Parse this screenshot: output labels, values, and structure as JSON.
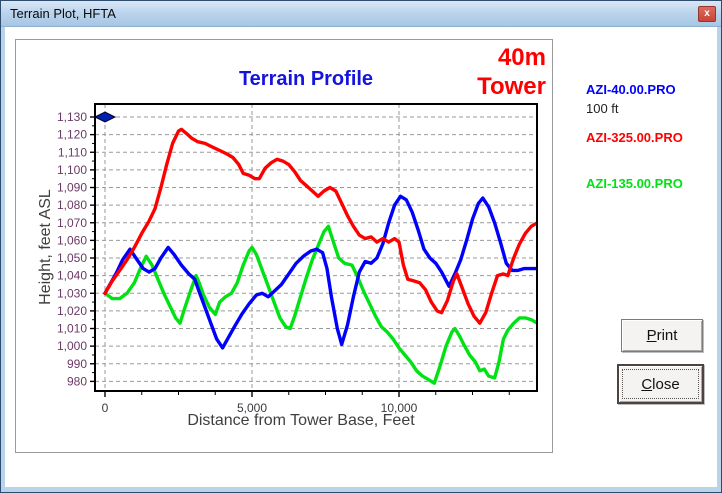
{
  "window": {
    "title": "Terrain Plot, HFTA",
    "close_glyph": "x"
  },
  "chart": {
    "title": "Terrain Profile",
    "annotation_line1": "40m",
    "annotation_line2": "Tower",
    "y_axis_label": "Height, feet ASL",
    "x_axis_label": "Distance from Tower Base, Feet"
  },
  "legend": {
    "series1_label": "AZI-40.00.PRO",
    "tower_height": "100 ft",
    "series2_label": "AZI-325.00.PRO",
    "series3_label": "AZI-135.00.PRO"
  },
  "buttons": {
    "print": "Print",
    "close": "Close"
  },
  "colors": {
    "chart_title": "#1414dd",
    "annotation": "#ff0000",
    "y_tick_labels": "#6a3a66",
    "x_tick_labels": "#3a3a40",
    "axis_labels": "#3f3f3f",
    "gridlines": "#9a9a9a",
    "frame": "#000000",
    "titlebar_close": "#c94437"
  },
  "chart_data": {
    "type": "line",
    "title": "Terrain Profile",
    "xlabel": "Distance from Tower Base, Feet",
    "ylabel": "Height, feet ASL",
    "ylim": [
      980,
      1130
    ],
    "ytick_step": 10,
    "xlim": [
      0,
      14700
    ],
    "xticks": [
      0,
      5000,
      10000
    ],
    "x_minor_step": 1250,
    "grid": "dashed",
    "legend_position": "right",
    "marker": {
      "name": "tower-top-marker",
      "x": 0,
      "y": 1130,
      "color": "#0020b0"
    },
    "series": [
      {
        "name": "AZI-40.00.PRO",
        "color": "#0000ff",
        "points": [
          [
            0,
            1030
          ],
          [
            200,
            1036
          ],
          [
            400,
            1042
          ],
          [
            600,
            1049
          ],
          [
            850,
            1055
          ],
          [
            1050,
            1050
          ],
          [
            1300,
            1044
          ],
          [
            1500,
            1042
          ],
          [
            1700,
            1044
          ],
          [
            1900,
            1050
          ],
          [
            2150,
            1056
          ],
          [
            2350,
            1052
          ],
          [
            2600,
            1046
          ],
          [
            2850,
            1041
          ],
          [
            3050,
            1038
          ],
          [
            3200,
            1031
          ],
          [
            3400,
            1022
          ],
          [
            3600,
            1013
          ],
          [
            3800,
            1004
          ],
          [
            4000,
            999
          ],
          [
            4200,
            1005
          ],
          [
            4400,
            1011
          ],
          [
            4650,
            1018
          ],
          [
            4900,
            1024
          ],
          [
            5150,
            1029
          ],
          [
            5350,
            1030
          ],
          [
            5550,
            1028
          ],
          [
            5750,
            1031
          ],
          [
            6000,
            1035
          ],
          [
            6250,
            1041
          ],
          [
            6500,
            1047
          ],
          [
            6750,
            1051
          ],
          [
            7000,
            1054
          ],
          [
            7200,
            1055
          ],
          [
            7400,
            1053
          ],
          [
            7550,
            1044
          ],
          [
            7700,
            1028
          ],
          [
            7900,
            1010
          ],
          [
            8050,
            1001
          ],
          [
            8250,
            1012
          ],
          [
            8450,
            1028
          ],
          [
            8650,
            1042
          ],
          [
            8850,
            1048
          ],
          [
            9050,
            1047
          ],
          [
            9250,
            1050
          ],
          [
            9450,
            1058
          ],
          [
            9650,
            1070
          ],
          [
            9850,
            1080
          ],
          [
            10050,
            1085
          ],
          [
            10250,
            1083
          ],
          [
            10450,
            1076
          ],
          [
            10650,
            1066
          ],
          [
            10850,
            1055
          ],
          [
            11050,
            1050
          ],
          [
            11250,
            1047
          ],
          [
            11450,
            1042
          ],
          [
            11700,
            1034
          ],
          [
            11900,
            1041
          ],
          [
            12100,
            1049
          ],
          [
            12300,
            1060
          ],
          [
            12500,
            1072
          ],
          [
            12700,
            1081
          ],
          [
            12850,
            1084
          ],
          [
            13050,
            1079
          ],
          [
            13250,
            1070
          ],
          [
            13450,
            1059
          ],
          [
            13650,
            1047
          ],
          [
            13850,
            1043
          ],
          [
            14050,
            1043
          ],
          [
            14250,
            1044
          ],
          [
            14450,
            1044
          ],
          [
            14700,
            1044
          ]
        ]
      },
      {
        "name": "AZI-325.00.PRO",
        "color": "#ff0000",
        "points": [
          [
            0,
            1030
          ],
          [
            250,
            1037
          ],
          [
            500,
            1043
          ],
          [
            750,
            1049
          ],
          [
            1000,
            1056
          ],
          [
            1250,
            1064
          ],
          [
            1500,
            1071
          ],
          [
            1700,
            1078
          ],
          [
            1900,
            1090
          ],
          [
            2100,
            1103
          ],
          [
            2300,
            1115
          ],
          [
            2500,
            1122
          ],
          [
            2600,
            1123
          ],
          [
            2750,
            1121
          ],
          [
            2950,
            1118
          ],
          [
            3150,
            1116
          ],
          [
            3400,
            1115
          ],
          [
            3650,
            1113
          ],
          [
            3900,
            1111
          ],
          [
            4150,
            1109
          ],
          [
            4350,
            1107
          ],
          [
            4550,
            1103
          ],
          [
            4700,
            1098
          ],
          [
            4900,
            1097
          ],
          [
            5100,
            1095
          ],
          [
            5250,
            1095
          ],
          [
            5450,
            1101
          ],
          [
            5650,
            1104
          ],
          [
            5850,
            1106
          ],
          [
            6050,
            1105
          ],
          [
            6250,
            1103
          ],
          [
            6450,
            1099
          ],
          [
            6650,
            1094
          ],
          [
            6850,
            1091
          ],
          [
            7050,
            1088
          ],
          [
            7250,
            1085
          ],
          [
            7450,
            1088
          ],
          [
            7650,
            1090
          ],
          [
            7850,
            1088
          ],
          [
            8050,
            1081
          ],
          [
            8250,
            1074
          ],
          [
            8450,
            1068
          ],
          [
            8650,
            1063
          ],
          [
            8850,
            1061
          ],
          [
            9050,
            1062
          ],
          [
            9250,
            1059
          ],
          [
            9450,
            1061
          ],
          [
            9650,
            1059
          ],
          [
            9850,
            1061
          ],
          [
            10000,
            1059
          ],
          [
            10150,
            1046
          ],
          [
            10300,
            1038
          ],
          [
            10500,
            1037
          ],
          [
            10700,
            1036
          ],
          [
            10900,
            1032
          ],
          [
            11100,
            1025
          ],
          [
            11300,
            1020
          ],
          [
            11450,
            1019
          ],
          [
            11650,
            1026
          ],
          [
            11850,
            1037
          ],
          [
            11970,
            1041
          ],
          [
            12150,
            1033
          ],
          [
            12350,
            1024
          ],
          [
            12550,
            1017
          ],
          [
            12750,
            1013
          ],
          [
            12950,
            1019
          ],
          [
            13150,
            1030
          ],
          [
            13350,
            1040
          ],
          [
            13550,
            1041
          ],
          [
            13700,
            1040
          ],
          [
            13900,
            1050
          ],
          [
            14100,
            1058
          ],
          [
            14300,
            1064
          ],
          [
            14500,
            1068
          ],
          [
            14700,
            1070
          ]
        ]
      },
      {
        "name": "AZI-135.00.PRO",
        "color": "#00e214",
        "points": [
          [
            0,
            1030
          ],
          [
            250,
            1027
          ],
          [
            500,
            1027
          ],
          [
            750,
            1030
          ],
          [
            1000,
            1036
          ],
          [
            1200,
            1044
          ],
          [
            1400,
            1051
          ],
          [
            1600,
            1046
          ],
          [
            1800,
            1038
          ],
          [
            2000,
            1030
          ],
          [
            2200,
            1023
          ],
          [
            2400,
            1016
          ],
          [
            2550,
            1013
          ],
          [
            2700,
            1021
          ],
          [
            2900,
            1031
          ],
          [
            3100,
            1040
          ],
          [
            3200,
            1036
          ],
          [
            3350,
            1029
          ],
          [
            3550,
            1022
          ],
          [
            3750,
            1018
          ],
          [
            3900,
            1025
          ],
          [
            4100,
            1028
          ],
          [
            4300,
            1030
          ],
          [
            4500,
            1036
          ],
          [
            4700,
            1046
          ],
          [
            4900,
            1054
          ],
          [
            5000,
            1056
          ],
          [
            5150,
            1052
          ],
          [
            5350,
            1043
          ],
          [
            5550,
            1034
          ],
          [
            5750,
            1025
          ],
          [
            5950,
            1016
          ],
          [
            6150,
            1011
          ],
          [
            6300,
            1010
          ],
          [
            6450,
            1017
          ],
          [
            6650,
            1028
          ],
          [
            6850,
            1039
          ],
          [
            7050,
            1049
          ],
          [
            7250,
            1057
          ],
          [
            7450,
            1065
          ],
          [
            7600,
            1068
          ],
          [
            7750,
            1060
          ],
          [
            7950,
            1050
          ],
          [
            8150,
            1047
          ],
          [
            8400,
            1046
          ],
          [
            8600,
            1039
          ],
          [
            8800,
            1031
          ],
          [
            9000,
            1024
          ],
          [
            9200,
            1017
          ],
          [
            9400,
            1011
          ],
          [
            9600,
            1008
          ],
          [
            9800,
            1004
          ],
          [
            10000,
            999
          ],
          [
            10200,
            995
          ],
          [
            10400,
            991
          ],
          [
            10600,
            986
          ],
          [
            10800,
            983
          ],
          [
            11000,
            981
          ],
          [
            11200,
            979
          ],
          [
            11400,
            989
          ],
          [
            11600,
            1000
          ],
          [
            11800,
            1008
          ],
          [
            11900,
            1010
          ],
          [
            12050,
            1006
          ],
          [
            12200,
            1001
          ],
          [
            12400,
            995
          ],
          [
            12600,
            991
          ],
          [
            12750,
            986
          ],
          [
            12900,
            987
          ],
          [
            13050,
            983
          ],
          [
            13250,
            982
          ],
          [
            13400,
            991
          ],
          [
            13550,
            1004
          ],
          [
            13700,
            1009
          ],
          [
            13900,
            1013
          ],
          [
            14100,
            1016
          ],
          [
            14300,
            1016
          ],
          [
            14500,
            1015
          ],
          [
            14700,
            1013
          ]
        ]
      }
    ]
  }
}
